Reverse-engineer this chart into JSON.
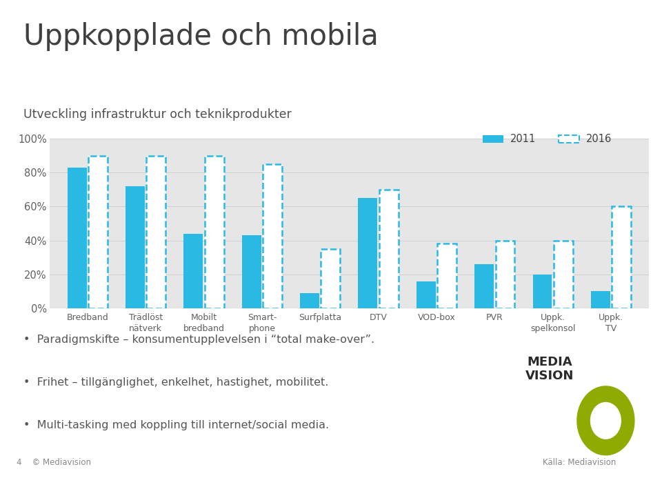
{
  "title": "Uppkopplade och mobila",
  "subtitle": "Utveckling infrastruktur och teknikprodukter",
  "categories": [
    "Bredband",
    "Trädlöst\nnätverk",
    "Mobilt\nbredband",
    "Smart-\nphone",
    "Surfplatta",
    "DTV",
    "VOD-box",
    "PVR",
    "Uppk.\nspelkonsol",
    "Uppk.\nTV"
  ],
  "values_2011": [
    83,
    72,
    44,
    43,
    9,
    65,
    16,
    26,
    20,
    10
  ],
  "values_2016": [
    90,
    90,
    90,
    85,
    35,
    70,
    38,
    40,
    40,
    60
  ],
  "bar_color_2011": "#29b9e3",
  "bar_color_2016_fill": "#ffffff",
  "bar_color_2016_edge": "#29b9e3",
  "bg_color": "#e6e6e6",
  "page_bg": "#ffffff",
  "title_color": "#404040",
  "subtitle_bg": "#d8d8d8",
  "subtitle_color": "#505050",
  "tick_color": "#606060",
  "ylim": [
    0,
    100
  ],
  "yticks": [
    0,
    20,
    40,
    60,
    80,
    100
  ],
  "ytick_labels": [
    "0%",
    "20%",
    "40%",
    "60%",
    "80%",
    "100%"
  ],
  "legend_2011": "2011",
  "legend_2016": "2016",
  "bullets": [
    "Paradigmskifte – konsumentupplevelsen i “total make-over”.",
    "Frihet – tillgänglighet, enkelhet, hastighet, mobilitet.",
    "Multi-tasking med koppling till internet/social media."
  ],
  "footer_left": "4    © Mediavision",
  "footer_right": "Källa: Mediavision",
  "logo_color": "#8faa00"
}
